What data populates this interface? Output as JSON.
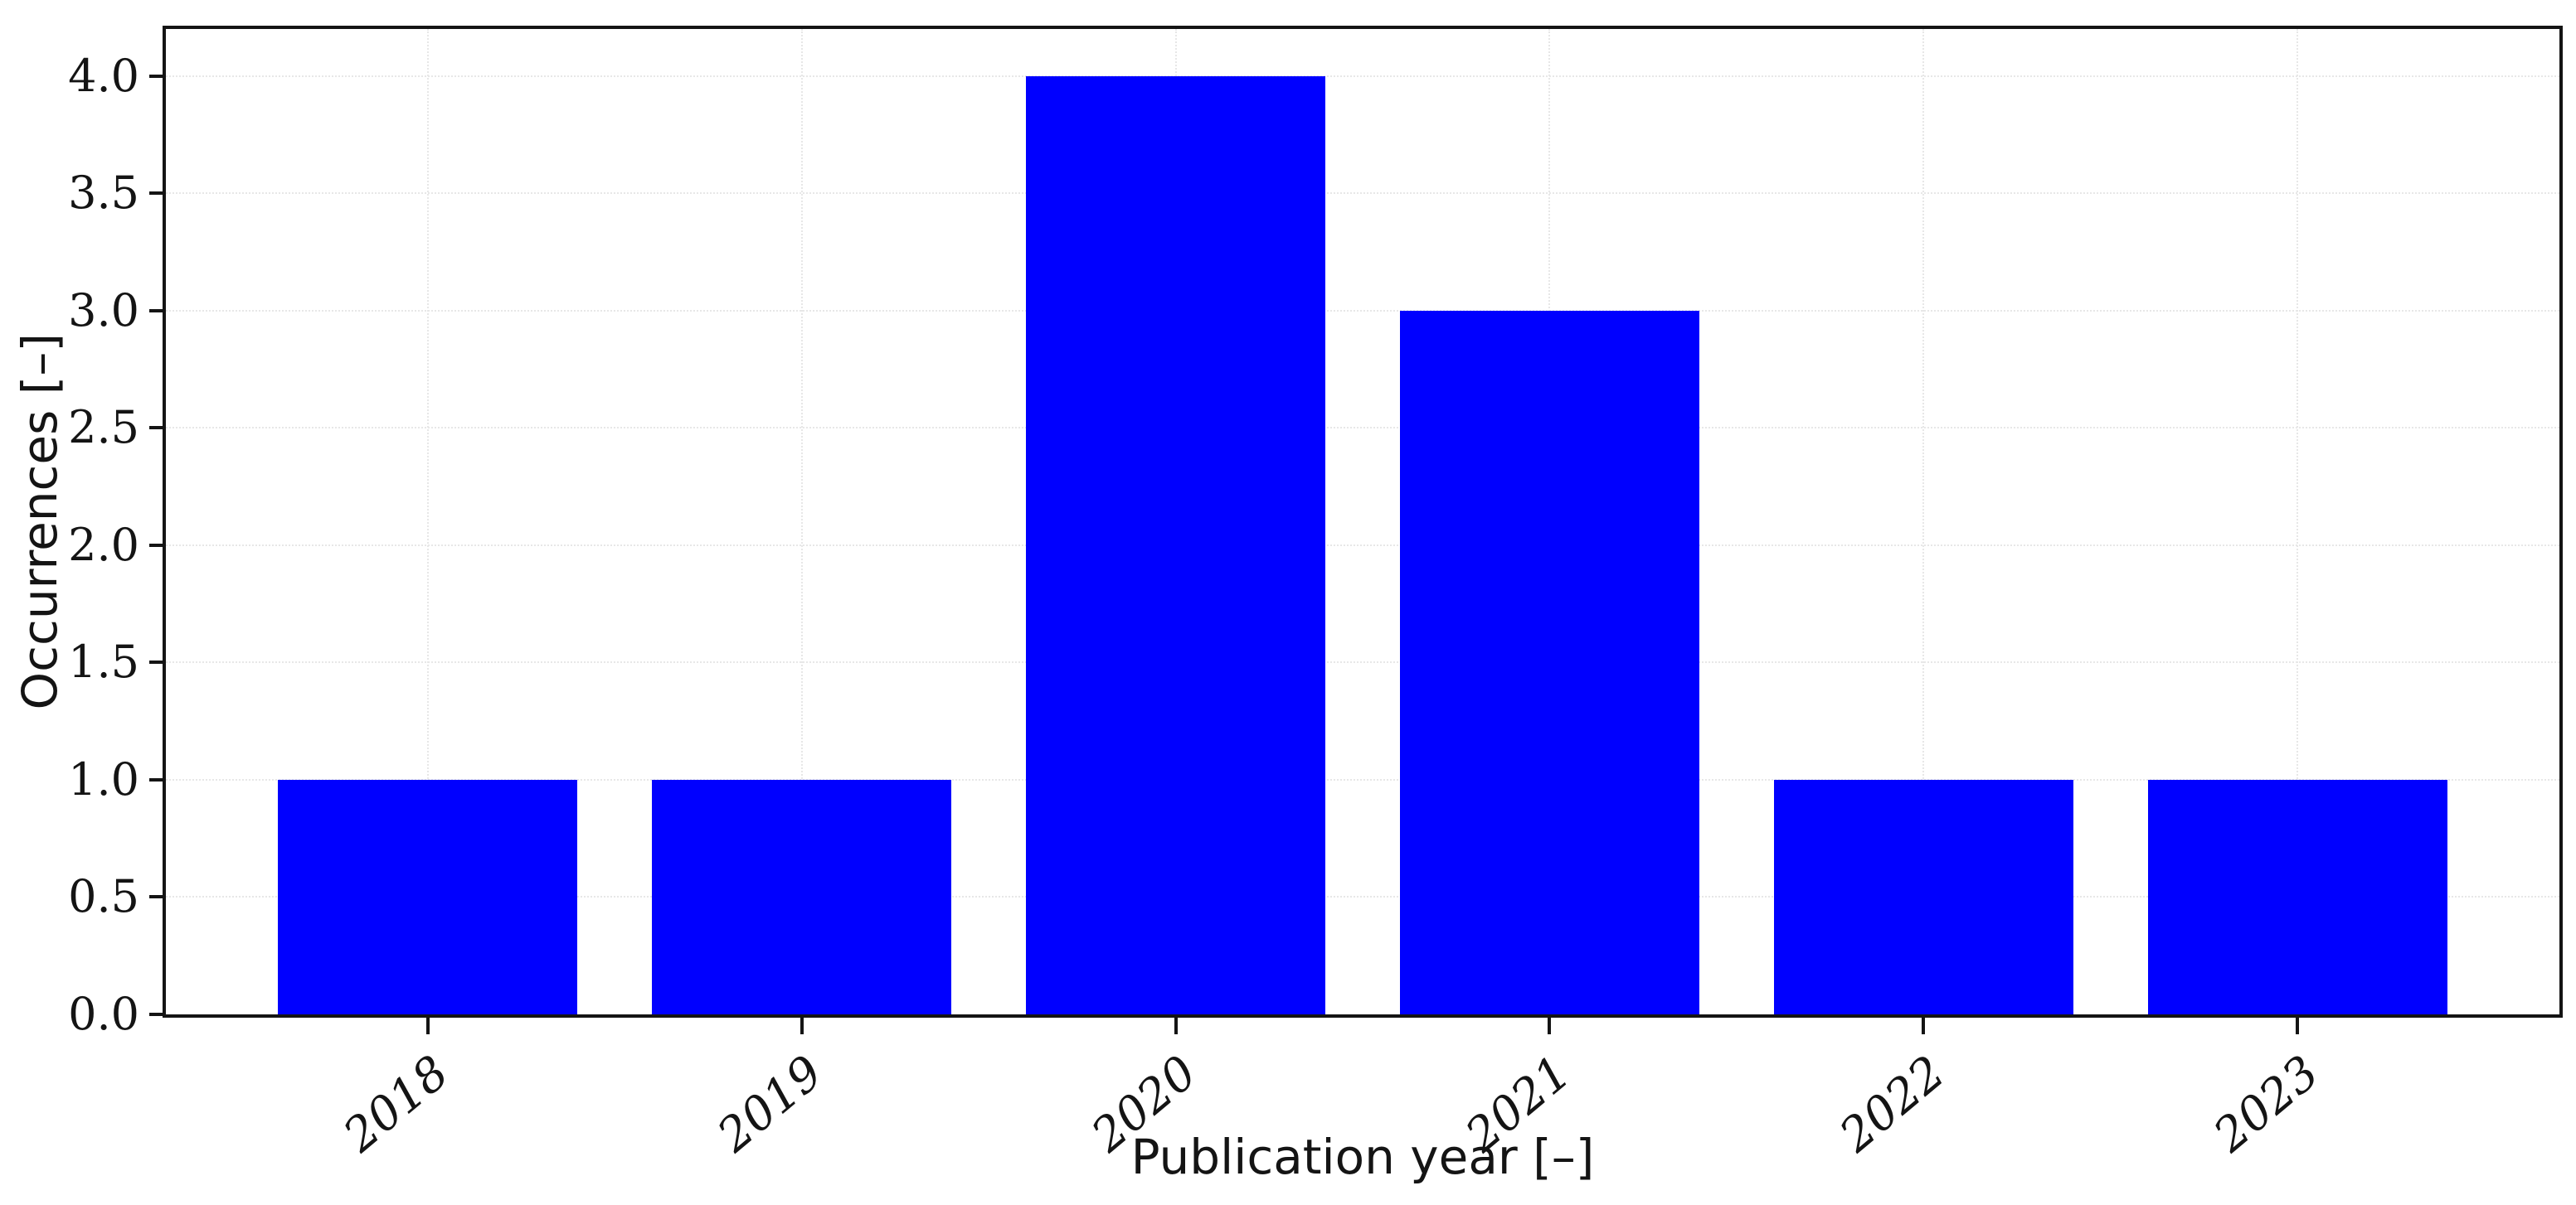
{
  "figure": {
    "background": "#ffffff"
  },
  "chart_data": {
    "type": "bar",
    "title": "",
    "categories": [
      "2018",
      "2019",
      "2020",
      "2021",
      "2022",
      "2023"
    ],
    "values": [
      1,
      1,
      4,
      3,
      1,
      1
    ],
    "xlabel": "Publication year [–]",
    "ylabel": "Occurrences [–]",
    "ylim": [
      0,
      4.2
    ],
    "x_margin": 0.7,
    "bar_width_ratio": 0.8,
    "yticks": [
      {
        "v": 0.0,
        "label": "0.0"
      },
      {
        "v": 0.5,
        "label": "0.5"
      },
      {
        "v": 1.0,
        "label": "1.0"
      },
      {
        "v": 1.5,
        "label": "1.5"
      },
      {
        "v": 2.0,
        "label": "2.0"
      },
      {
        "v": 2.5,
        "label": "2.5"
      },
      {
        "v": 3.0,
        "label": "3.0"
      },
      {
        "v": 3.5,
        "label": "3.5"
      },
      {
        "v": 4.0,
        "label": "4.0"
      }
    ],
    "xtick_rotation_deg": -40,
    "grid": true,
    "legend_position": "none",
    "colors": {
      "bar": "#0000ff",
      "axis": "#141414",
      "grid": "#e7e7e7",
      "text": "#141414"
    }
  }
}
